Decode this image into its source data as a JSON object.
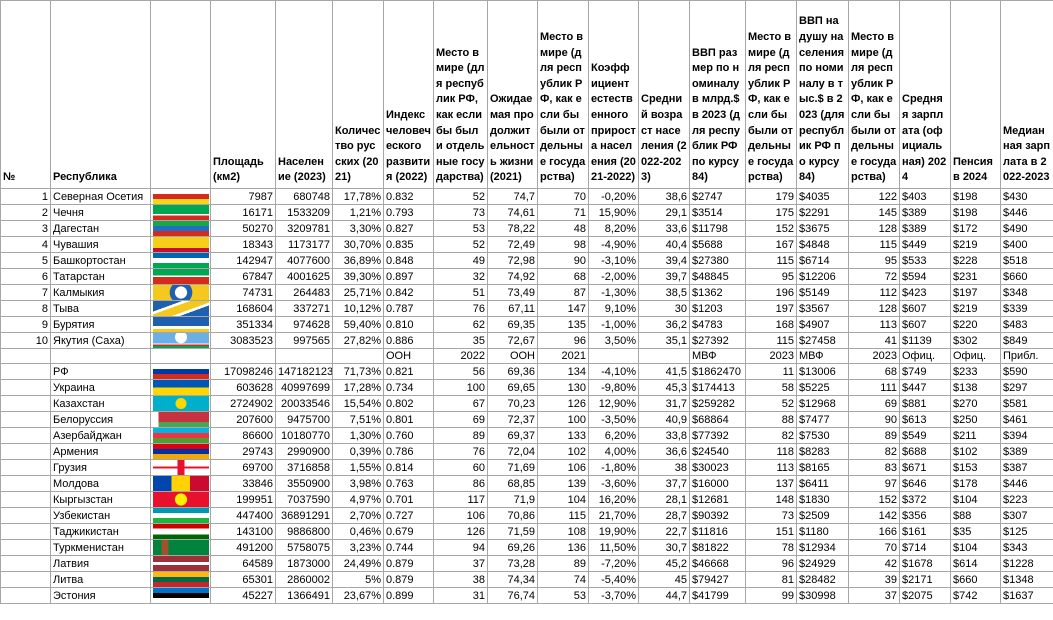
{
  "table": {
    "columns": [
      "№",
      "Республика",
      "Площадь (км2)",
      "Население (2023)",
      "Количество русских (2021)",
      "Индекс человеческого развития (2022)",
      "Место в мире (для республик РФ, как если бы были отдельные государства)",
      "Ожидаемая продолжительность жизни (2021)",
      "Место в мире (для республик РФ, как если бы были отдельные государства)",
      "Коэффициент естественного прироста населения (2021-2022)",
      "Средний возраст населения (2022-2023)",
      "ВВП размер по номиналу в млрд.$ в 2023 (для республик РФ по курсу 84)",
      "Место в мире (для республик РФ, как если бы были отдельные государства)",
      "ВВП на душу населения по номиналу в тыс.$ в 2023 (для республик РФ по курсу 84)",
      "Место в мире (для республик РФ, как если бы были отдельные государства)",
      "Средняя зарплата (официальная) 2024",
      "Пенсия в 2024",
      "Медианная зарплата в 2022-2023"
    ],
    "republics": [
      {
        "num": 1,
        "name": "Северная Осетия",
        "values": [
          "7987",
          "680748",
          "17,78%",
          "0.832",
          "52",
          "74,7",
          "70",
          "-0,20%",
          "38,6",
          "$2747",
          "179",
          "$4035",
          "122",
          "$403",
          "$198",
          "$430"
        ]
      },
      {
        "num": 2,
        "name": "Чечня",
        "values": [
          "16171",
          "1533209",
          "1,21%",
          "0.793",
          "73",
          "74,61",
          "71",
          "15,90%",
          "29,1",
          "$3514",
          "175",
          "$2291",
          "145",
          "$389",
          "$198",
          "$446"
        ]
      },
      {
        "num": 3,
        "name": "Дагестан",
        "values": [
          "50270",
          "3209781",
          "3,30%",
          "0.827",
          "53",
          "78,22",
          "48",
          "8,20%",
          "33,6",
          "$11798",
          "152",
          "$3675",
          "128",
          "$389",
          "$172",
          "$490"
        ]
      },
      {
        "num": 4,
        "name": "Чувашия",
        "values": [
          "18343",
          "1173177",
          "30,70%",
          "0.835",
          "52",
          "72,49",
          "98",
          "-4,90%",
          "40,4",
          "$5688",
          "167",
          "$4848",
          "115",
          "$449",
          "$219",
          "$400"
        ]
      },
      {
        "num": 5,
        "name": "Башкортостан",
        "values": [
          "142947",
          "4077600",
          "36,89%",
          "0.848",
          "49",
          "72,98",
          "90",
          "-3,10%",
          "39,4",
          "$27380",
          "115",
          "$6714",
          "95",
          "$533",
          "$228",
          "$518"
        ]
      },
      {
        "num": 6,
        "name": "Татарстан",
        "values": [
          "67847",
          "4001625",
          "39,30%",
          "0.897",
          "32",
          "74,92",
          "68",
          "-2,00%",
          "39,7",
          "$48845",
          "95",
          "$12206",
          "72",
          "$594",
          "$231",
          "$660"
        ]
      },
      {
        "num": 7,
        "name": "Калмыкия",
        "values": [
          "74731",
          "264483",
          "25,71%",
          "0.842",
          "51",
          "73,49",
          "87",
          "-1,30%",
          "38,5",
          "$1362",
          "196",
          "$5149",
          "112",
          "$423",
          "$197",
          "$348"
        ]
      },
      {
        "num": 8,
        "name": "Тыва",
        "values": [
          "168604",
          "337271",
          "10,12%",
          "0.787",
          "76",
          "67,11",
          "147",
          "9,10%",
          "30",
          "$1203",
          "197",
          "$3567",
          "128",
          "$607",
          "$219",
          "$339"
        ]
      },
      {
        "num": 9,
        "name": "Бурятия",
        "values": [
          "351334",
          "974628",
          "59,40%",
          "0.810",
          "62",
          "69,35",
          "135",
          "-1,00%",
          "36,2",
          "$4783",
          "168",
          "$4907",
          "113",
          "$607",
          "$220",
          "$483"
        ]
      },
      {
        "num": 10,
        "name": "Якутия (Саха)",
        "values": [
          "3083523",
          "997565",
          "27,82%",
          "0.886",
          "35",
          "72,67",
          "96",
          "3,50%",
          "35,1",
          "$27392",
          "115",
          "$27458",
          "41",
          "$1139",
          "$302",
          "$849"
        ]
      }
    ],
    "sources": [
      null,
      null,
      null,
      "ООН",
      "2022",
      "ООН",
      "2021",
      null,
      null,
      "МВФ",
      "2023",
      "МВФ",
      "2023",
      "Офиц.",
      "Офиц.",
      "Прибл."
    ],
    "countries": [
      {
        "name": "РФ",
        "values": [
          "17098246",
          "147182123",
          "71,73%",
          "0.821",
          "56",
          "69,36",
          "134",
          "-4,10%",
          "41,5",
          "$1862470",
          "11",
          "$13006",
          "68",
          "$749",
          "$233",
          "$590"
        ]
      },
      {
        "name": "Украина",
        "values": [
          "603628",
          "40997699",
          "17,28%",
          "0.734",
          "100",
          "69,65",
          "130",
          "-9,80%",
          "45,3",
          "$174413",
          "58",
          "$5225",
          "111",
          "$447",
          "$138",
          "$297"
        ]
      },
      {
        "name": "Казахстан",
        "values": [
          "2724902",
          "20033546",
          "15,54%",
          "0.802",
          "67",
          "70,23",
          "126",
          "12,90%",
          "31,7",
          "$259282",
          "52",
          "$12968",
          "69",
          "$881",
          "$270",
          "$581"
        ]
      },
      {
        "name": "Белоруссия",
        "values": [
          "207600",
          "9475700",
          "7,51%",
          "0.801",
          "69",
          "72,37",
          "100",
          "-3,50%",
          "40,9",
          "$68864",
          "88",
          "$7477",
          "90",
          "$613",
          "$250",
          "$461"
        ]
      },
      {
        "name": "Азербайджан",
        "values": [
          "86600",
          "10180770",
          "1,30%",
          "0.760",
          "89",
          "69,37",
          "133",
          "6,20%",
          "33,8",
          "$77392",
          "82",
          "$7530",
          "89",
          "$549",
          "$211",
          "$394"
        ]
      },
      {
        "name": "Армения",
        "values": [
          "29743",
          "2990900",
          "0,39%",
          "0.786",
          "76",
          "72,04",
          "102",
          "4,00%",
          "36,6",
          "$24540",
          "118",
          "$8283",
          "82",
          "$688",
          "$102",
          "$389"
        ]
      },
      {
        "name": "Грузия",
        "values": [
          "69700",
          "3716858",
          "1,55%",
          "0.814",
          "60",
          "71,69",
          "106",
          "-1,80%",
          "38",
          "$30023",
          "113",
          "$8165",
          "83",
          "$671",
          "$153",
          "$387"
        ]
      },
      {
        "name": "Молдова",
        "values": [
          "33846",
          "3550900",
          "3,98%",
          "0.763",
          "86",
          "68,85",
          "139",
          "-3,60%",
          "37,7",
          "$16000",
          "137",
          "$6411",
          "97",
          "$646",
          "$178",
          "$446"
        ]
      },
      {
        "name": "Кыргызстан",
        "values": [
          "199951",
          "7037590",
          "4,97%",
          "0.701",
          "117",
          "71,9",
          "104",
          "16,20%",
          "28,1",
          "$12681",
          "148",
          "$1830",
          "152",
          "$372",
          "$104",
          "$223"
        ]
      },
      {
        "name": "Узбекистан",
        "values": [
          "447400",
          "36891291",
          "2,70%",
          "0.727",
          "106",
          "70,86",
          "115",
          "21,70%",
          "28,7",
          "$90392",
          "73",
          "$2509",
          "142",
          "$356",
          "$88",
          "$307"
        ]
      },
      {
        "name": "Таджикистан",
        "values": [
          "143100",
          "9886800",
          "0,46%",
          "0.679",
          "126",
          "71,59",
          "108",
          "19,90%",
          "22,7",
          "$11816",
          "151",
          "$1180",
          "166",
          "$161",
          "$35",
          "$125"
        ]
      },
      {
        "name": "Туркменистан",
        "values": [
          "491200",
          "5758075",
          "3,23%",
          "0.744",
          "94",
          "69,26",
          "136",
          "11,50%",
          "30,7",
          "$81822",
          "78",
          "$12934",
          "70",
          "$714",
          "$104",
          "$343"
        ]
      },
      {
        "name": "Латвия",
        "values": [
          "64589",
          "1873000",
          "24,49%",
          "0.879",
          "37",
          "73,28",
          "89",
          "-7,20%",
          "45,2",
          "$46668",
          "96",
          "$24929",
          "42",
          "$1678",
          "$614",
          "$1228"
        ]
      },
      {
        "name": "Литва",
        "values": [
          "65301",
          "2860002",
          "5%",
          "0.879",
          "38",
          "74,34",
          "74",
          "-5,40%",
          "45",
          "$79427",
          "81",
          "$28482",
          "39",
          "$2171",
          "$660",
          "$1348"
        ]
      },
      {
        "name": "Эстония",
        "values": [
          "45227",
          "1366491",
          "23,67%",
          "0.899",
          "31",
          "76,74",
          "53",
          "-3,70%",
          "44,7",
          "$41799",
          "99",
          "$30998",
          "37",
          "$2075",
          "$742",
          "$1637"
        ]
      }
    ]
  }
}
